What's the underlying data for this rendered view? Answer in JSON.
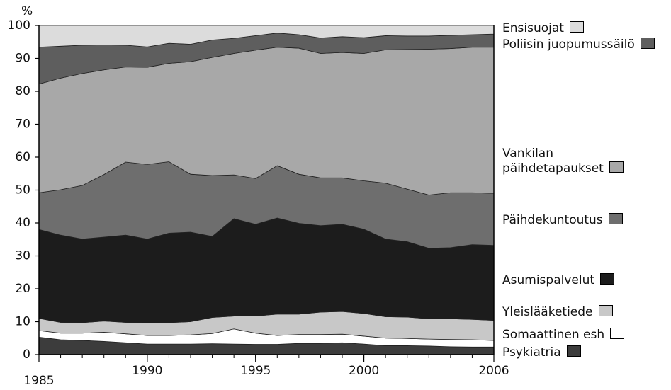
{
  "chart_data": {
    "type": "stacked_area",
    "y_label": "%",
    "x": [
      1985,
      1986,
      1987,
      1988,
      1989,
      1990,
      1991,
      1992,
      1993,
      1994,
      1995,
      1996,
      1997,
      1998,
      1999,
      2000,
      2001,
      2002,
      2003,
      2004,
      2005,
      2006
    ],
    "xlim": [
      1985,
      2006
    ],
    "xticks": [
      1985,
      1990,
      1995,
      2000,
      2006
    ],
    "ylim": [
      0,
      100
    ],
    "yticks": [
      0,
      10,
      20,
      30,
      40,
      50,
      60,
      70,
      80,
      90,
      100
    ],
    "grid": false,
    "legend": "right",
    "series": [
      {
        "name": "Psykiatria",
        "color": "#3c3c3c",
        "values": [
          5.3,
          4.5,
          4.3,
          4.0,
          3.6,
          3.2,
          3.2,
          3.2,
          3.3,
          3.2,
          3.1,
          3.1,
          3.4,
          3.4,
          3.6,
          3.2,
          2.7,
          2.7,
          2.6,
          2.4,
          2.3,
          2.3
        ]
      },
      {
        "name": "Somaattinen esh",
        "color": "#ffffff",
        "values": [
          2.0,
          2.0,
          2.2,
          2.8,
          2.7,
          2.6,
          2.6,
          2.8,
          3.1,
          4.6,
          3.4,
          2.7,
          2.7,
          2.7,
          2.6,
          2.4,
          2.3,
          2.2,
          2.1,
          2.2,
          2.2,
          2.0
        ]
      },
      {
        "name": "Yleislääketiede",
        "color": "#c8c8c8",
        "values": [
          3.7,
          3.3,
          3.2,
          3.4,
          3.5,
          3.8,
          3.9,
          4.0,
          4.9,
          3.9,
          5.2,
          6.5,
          6.2,
          6.8,
          6.9,
          6.9,
          6.5,
          6.5,
          6.2,
          6.3,
          6.2,
          6.1
        ]
      },
      {
        "name": "Asumispalvelut",
        "color": "#1c1c1c",
        "values": [
          27.0,
          26.5,
          25.4,
          25.5,
          26.5,
          25.5,
          27.2,
          27.2,
          24.6,
          29.6,
          27.9,
          29.2,
          27.6,
          26.3,
          26.5,
          25.6,
          23.6,
          22.9,
          21.4,
          21.6,
          22.7,
          22.8
        ]
      },
      {
        "name": "Päihdekuntoutus",
        "color": "#6e6e6e",
        "values": [
          11.2,
          13.8,
          16.3,
          19.0,
          22.2,
          22.7,
          21.7,
          17.6,
          18.5,
          13.3,
          13.9,
          15.9,
          14.9,
          14.5,
          14.1,
          14.7,
          17.0,
          16.0,
          16.2,
          16.7,
          15.8,
          15.8
        ]
      },
      {
        "name": "Vankilan päihdetapaukset",
        "color": "#a8a8a8",
        "values": [
          33.0,
          33.9,
          34.0,
          31.8,
          28.9,
          29.5,
          29.9,
          34.2,
          35.9,
          36.9,
          39.0,
          36.0,
          38.3,
          37.8,
          38.1,
          38.7,
          40.5,
          42.4,
          44.3,
          43.8,
          44.2,
          44.4
        ]
      },
      {
        "name": "Poliisin juopumussäilö",
        "color": "#5e5e5e",
        "values": [
          11.2,
          9.7,
          8.6,
          7.6,
          6.6,
          6.2,
          6.1,
          5.3,
          5.3,
          4.6,
          4.4,
          4.3,
          4.1,
          4.7,
          4.8,
          4.8,
          4.3,
          4.1,
          4.0,
          4.0,
          3.8,
          4.0
        ]
      },
      {
        "name": "Ensisuojat",
        "color": "#dcdcdc",
        "values": [
          6.6,
          6.3,
          6.0,
          5.9,
          6.0,
          6.5,
          5.4,
          5.7,
          4.4,
          3.9,
          3.1,
          2.3,
          2.8,
          3.8,
          3.4,
          3.7,
          3.1,
          3.2,
          3.2,
          3.0,
          2.8,
          2.6
        ]
      }
    ]
  }
}
